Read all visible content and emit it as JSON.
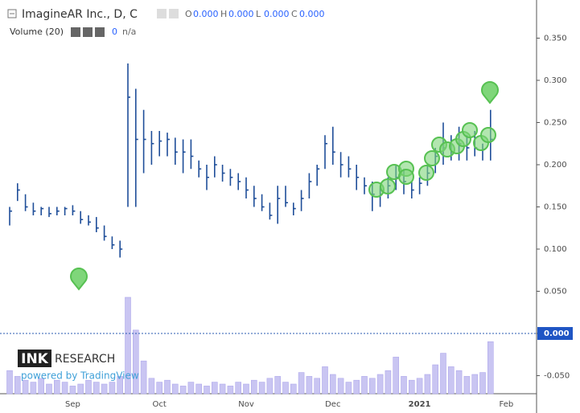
{
  "header": {
    "symbol": "ImagineAR Inc., D, C",
    "ohlc": [
      {
        "name": "O",
        "value": {
          "value": 0,
          "label": "0.000"
        }
      },
      {
        "name": "H",
        "value": {
          "value": 0,
          "label": "0.000"
        }
      },
      {
        "name": "L",
        "value": {
          "value": 0,
          "label": "0.000"
        }
      },
      {
        "name": "C",
        "value": {
          "value": 0,
          "label": "0.000"
        }
      }
    ],
    "volume_title": "Volume (20)",
    "volume_value": 0,
    "volume_ma": "n/a"
  },
  "logo": {
    "brand": "INK",
    "brand2": "RESEARCH",
    "powered": "powered by TradingView"
  },
  "chart_data": {
    "type": "hlc",
    "color": "#1f4e99",
    "volume_color": "#c9c5f2",
    "categories": [
      null,
      null,
      null,
      null,
      null,
      null,
      null,
      null,
      "Sep",
      null,
      null,
      null,
      null,
      null,
      null,
      null,
      null,
      null,
      null,
      "Oct",
      null,
      null,
      null,
      null,
      null,
      null,
      null,
      null,
      null,
      null,
      "Nov",
      null,
      null,
      null,
      null,
      null,
      null,
      null,
      null,
      null,
      null,
      "Dec",
      null,
      null,
      null,
      null,
      null,
      null,
      null,
      null,
      null,
      null,
      "2021",
      null,
      null,
      null,
      null,
      null,
      null,
      null,
      null,
      null,
      null,
      "Feb"
    ],
    "high": [
      0.15,
      0.178,
      0.165,
      0.155,
      0.15,
      0.15,
      0.15,
      0.15,
      0.152,
      0.145,
      0.14,
      0.138,
      0.128,
      0.115,
      0.11,
      0.32,
      0.29,
      0.265,
      0.24,
      0.24,
      0.238,
      0.232,
      0.23,
      0.23,
      0.205,
      0.2,
      0.21,
      0.2,
      0.195,
      0.19,
      0.185,
      0.175,
      0.165,
      0.155,
      0.175,
      0.175,
      0.155,
      0.17,
      0.19,
      0.2,
      0.235,
      0.245,
      0.215,
      0.21,
      0.2,
      0.185,
      0.18,
      0.175,
      0.185,
      0.2,
      0.195,
      0.18,
      0.185,
      0.2,
      0.22,
      0.25,
      0.235,
      0.245,
      0.235,
      0.24,
      0.225,
      0.265,
      null,
      null
    ],
    "low": [
      0.128,
      0.157,
      0.145,
      0.14,
      0.14,
      0.138,
      0.14,
      0.14,
      0.14,
      0.13,
      0.128,
      0.12,
      0.11,
      0.1,
      0.09,
      0.15,
      0.15,
      0.19,
      0.2,
      0.21,
      0.21,
      0.2,
      0.19,
      0.195,
      0.185,
      0.17,
      0.185,
      0.18,
      0.175,
      0.17,
      0.16,
      0.15,
      0.145,
      0.135,
      0.13,
      0.15,
      0.14,
      0.145,
      0.16,
      0.175,
      0.195,
      0.2,
      0.185,
      0.185,
      0.17,
      0.165,
      0.145,
      0.15,
      0.16,
      0.17,
      0.165,
      0.16,
      0.165,
      0.175,
      0.19,
      0.2,
      0.205,
      0.205,
      0.205,
      0.21,
      0.205,
      0.205,
      null,
      null
    ],
    "close": [
      0.145,
      0.17,
      0.15,
      0.145,
      0.148,
      0.142,
      0.145,
      0.148,
      0.145,
      0.135,
      0.132,
      0.125,
      0.115,
      0.105,
      0.1,
      0.28,
      0.23,
      0.23,
      0.225,
      0.228,
      0.23,
      0.215,
      0.215,
      0.21,
      0.195,
      0.185,
      0.2,
      0.19,
      0.185,
      0.18,
      0.17,
      0.16,
      0.15,
      0.14,
      0.16,
      0.155,
      0.148,
      0.16,
      0.18,
      0.195,
      0.225,
      0.215,
      0.2,
      0.195,
      0.185,
      0.175,
      0.165,
      0.165,
      0.175,
      0.185,
      0.18,
      0.17,
      0.178,
      0.19,
      0.21,
      0.22,
      0.215,
      0.225,
      0.22,
      0.22,
      0.218,
      0.23,
      null,
      null
    ],
    "volume": [
      120,
      90,
      70,
      60,
      80,
      50,
      70,
      60,
      40,
      50,
      70,
      60,
      50,
      60,
      90,
      500,
      330,
      170,
      80,
      60,
      70,
      50,
      40,
      60,
      50,
      40,
      60,
      50,
      40,
      60,
      50,
      70,
      60,
      80,
      90,
      60,
      50,
      110,
      90,
      80,
      140,
      100,
      80,
      60,
      70,
      90,
      80,
      100,
      120,
      190,
      90,
      70,
      80,
      100,
      150,
      210,
      140,
      120,
      90,
      100,
      110,
      270,
      null,
      null
    ],
    "vlim": [
      0,
      1000
    ],
    "ylim": [
      -0.0714,
      0.3952
    ],
    "yticks": [
      {
        "value": 0.35,
        "label": "0.350"
      },
      {
        "value": 0.3,
        "label": "0.300"
      },
      {
        "value": 0.25,
        "label": "0.250"
      },
      {
        "value": 0.2,
        "label": "0.200"
      },
      {
        "value": 0.15,
        "label": "0.150"
      },
      {
        "value": 0.1,
        "label": "0.100"
      },
      {
        "value": 0.05,
        "label": "0.050"
      },
      {
        "value": 0,
        "label": "0.000"
      },
      {
        "value": -0.05,
        "label": "-0.050"
      }
    ],
    "last_value": {
      "value": 0,
      "label": "0.000"
    }
  }
}
